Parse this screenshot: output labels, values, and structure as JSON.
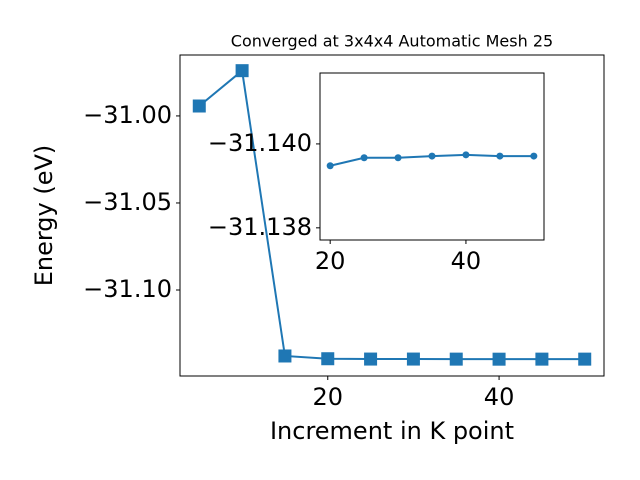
{
  "chart_data": [
    {
      "type": "line",
      "title": "Converged at 3x4x4 Automatic Mesh 25",
      "xlabel": "Increment in K point",
      "ylabel": "Energy (eV)",
      "x": [
        5,
        10,
        15,
        20,
        25,
        30,
        35,
        40,
        45,
        50
      ],
      "series": [
        {
          "color": "#1f77b4",
          "marker": "square",
          "values": [
            -30.9943,
            -30.974,
            -31.1379,
            -31.13948,
            -31.13967,
            -31.13967,
            -31.13971,
            -31.13974,
            -31.13971,
            -31.13971
          ]
        }
      ],
      "xlim": [
        2.75,
        52.25
      ],
      "xticks": [
        20,
        40
      ],
      "ylim": [
        -31.1494,
        -30.965
      ],
      "yticks": [
        {
          "value": -31.1,
          "label": "−31.10"
        },
        {
          "value": -31.05,
          "label": "−31.05"
        },
        {
          "value": -31.0,
          "label": "−31.00"
        }
      ]
    },
    {
      "type": "line",
      "x": [
        20,
        25,
        30,
        35,
        40,
        45,
        50
      ],
      "series": [
        {
          "color": "#1f77b4",
          "marker": "circle",
          "values": [
            -31.13948,
            -31.13967,
            -31.13967,
            -31.13971,
            -31.13974,
            -31.13971,
            -31.13971
          ]
        }
      ],
      "xlim": [
        18.5,
        51.5
      ],
      "xticks": [
        20,
        40
      ],
      "ylim": [
        -31.13771,
        -31.14169
      ],
      "yticks": [
        {
          "value": -31.138,
          "label": "−31.138"
        },
        {
          "value": -31.14,
          "label": "−31.140"
        }
      ]
    }
  ]
}
